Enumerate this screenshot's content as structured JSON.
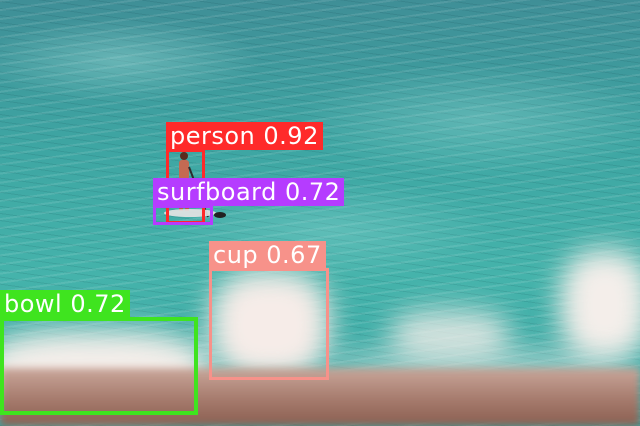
{
  "detections": [
    {
      "label": "person",
      "score": "0.92",
      "text": "person 0.92",
      "color": "#ff2a2a"
    },
    {
      "label": "surfboard",
      "score": "0.72",
      "text": "surfboard 0.72",
      "color": "#b53cff"
    },
    {
      "label": "cup",
      "score": "0.67",
      "text": "cup 0.67",
      "color": "#f7928a"
    },
    {
      "label": "bowl",
      "score": "0.72",
      "text": "bowl 0.72",
      "color": "#3fe41f"
    }
  ],
  "scene": {
    "description_colors": {
      "sea": "#3ea6a3",
      "foam": "#f4eeea",
      "table": "#a57a6c"
    }
  }
}
